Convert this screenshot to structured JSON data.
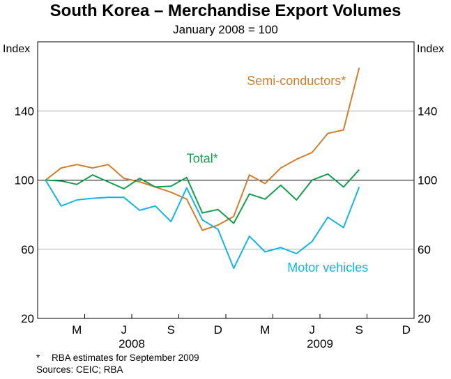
{
  "chart_data": {
    "type": "line",
    "title": "South Korea – Merchandise Export Volumes",
    "subtitle": "January 2008 = 100",
    "ylabel_left": "Index",
    "ylabel_right": "Index",
    "ylim": [
      20,
      180
    ],
    "yticks": [
      20,
      60,
      100,
      140
    ],
    "grid": true,
    "reference_line": 100,
    "x_period": [
      "2008-01",
      "2009-12"
    ],
    "month_labels": [
      {
        "month": "2008-03",
        "label": "M"
      },
      {
        "month": "2008-06",
        "label": "J"
      },
      {
        "month": "2008-09",
        "label": "S"
      },
      {
        "month": "2008-12",
        "label": "D"
      },
      {
        "month": "2009-03",
        "label": "M"
      },
      {
        "month": "2009-06",
        "label": "J"
      },
      {
        "month": "2009-09",
        "label": "S"
      },
      {
        "month": "2009-12",
        "label": "D"
      }
    ],
    "year_labels": [
      {
        "label": "2008",
        "center_month": "2008-07"
      },
      {
        "label": "2009",
        "center_month": "2009-07"
      }
    ],
    "x": [
      "2008-01",
      "2008-02",
      "2008-03",
      "2008-04",
      "2008-05",
      "2008-06",
      "2008-07",
      "2008-08",
      "2008-09",
      "2008-10",
      "2008-11",
      "2008-12",
      "2009-01",
      "2009-02",
      "2009-03",
      "2009-04",
      "2009-05",
      "2009-06",
      "2009-07",
      "2009-08",
      "2009-09",
      "2009-10"
    ],
    "series": [
      {
        "name": "Semi-conductors*",
        "color": "#d07f2e",
        "values": [
          100,
          107,
          109,
          107,
          109,
          101,
          99,
          96,
          93,
          89,
          71,
          74,
          79,
          103,
          98,
          107,
          112,
          116,
          127,
          129,
          165,
          null
        ]
      },
      {
        "name": "Total*",
        "color": "#139e4f",
        "values": [
          100,
          99.5,
          97.5,
          103,
          99,
          95,
          101,
          96,
          96.5,
          101.5,
          81,
          83,
          75,
          92,
          89,
          97,
          88.5,
          100,
          103.5,
          96,
          106,
          null
        ]
      },
      {
        "name": "Motor vehicles",
        "color": "#12b5e3",
        "values": [
          100,
          85,
          88.5,
          89.5,
          90,
          90,
          82.5,
          85,
          76,
          95.5,
          77,
          71.5,
          49,
          67.5,
          58.5,
          61,
          57.5,
          64.5,
          78.5,
          72.5,
          96,
          null
        ]
      }
    ],
    "series_labels": [
      {
        "series": 0,
        "text": "Semi-conductors*",
        "at_month": "2009-05",
        "at_value": 155
      },
      {
        "series": 1,
        "text": "Total*",
        "at_month": "2008-11",
        "at_value": 110
      },
      {
        "series": 2,
        "text": "Motor vehicles",
        "at_month": "2009-07",
        "at_value": 47
      }
    ]
  },
  "notes": {
    "footnote_mark": "*",
    "footnote": "RBA estimates for September 2009",
    "sources": "Sources: CEIC; RBA"
  }
}
